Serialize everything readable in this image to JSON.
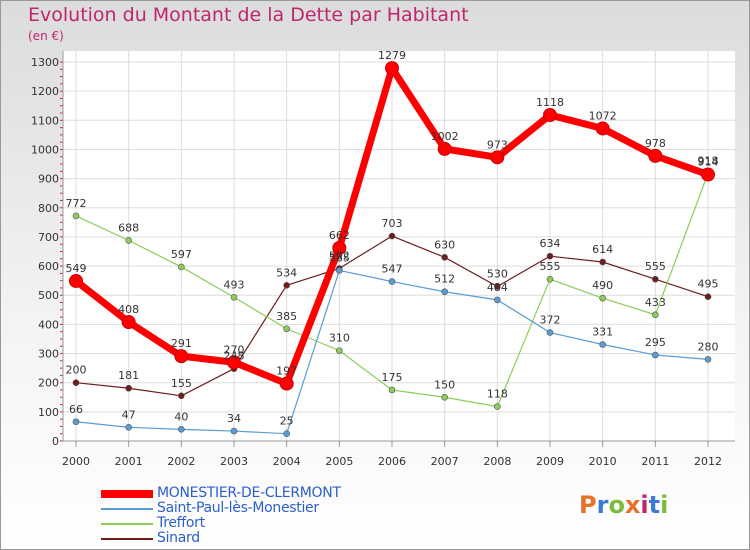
{
  "title": "Evolution du Montant de la Dette par Habitant",
  "unit": "(en €)",
  "logo": {
    "text": "Proxiti",
    "colors": [
      "#e8702a",
      "#3b7bd4",
      "#7dbb3a",
      "#e8702a",
      "#c0266f",
      "#3b7bd4",
      "#7dbb3a"
    ]
  },
  "chart_data": {
    "type": "line",
    "x": [
      "2000",
      "2001",
      "2002",
      "2003",
      "2004",
      "2005",
      "2006",
      "2007",
      "2008",
      "2009",
      "2010",
      "2011",
      "2012"
    ],
    "ylim": [
      0,
      1300
    ],
    "yticks": [
      0,
      100,
      200,
      300,
      400,
      500,
      600,
      700,
      800,
      900,
      1000,
      1100,
      1200,
      1300
    ],
    "grid": true,
    "legend_position": "bottom-left",
    "series": [
      {
        "name": "MONESTIER-DE-CLERMONT",
        "color": "#ff0000",
        "values": [
          549,
          408,
          291,
          270,
          197,
          662,
          1279,
          1002,
          973,
          1118,
          1072,
          978,
          914
        ]
      },
      {
        "name": "Saint-Paul-lès-Monestier",
        "color": "#5b9bd5",
        "values": [
          66,
          47,
          40,
          34,
          25,
          585,
          547,
          512,
          484,
          372,
          331,
          295,
          280
        ]
      },
      {
        "name": "Treffort",
        "color": "#8ccd5a",
        "values": [
          772,
          688,
          597,
          493,
          385,
          310,
          175,
          150,
          118,
          555,
          490,
          433,
          918
        ]
      },
      {
        "name": "Sinard",
        "color": "#6e1d1d",
        "values": [
          200,
          181,
          155,
          248,
          534,
          592,
          703,
          630,
          530,
          634,
          614,
          555,
          495
        ]
      }
    ]
  }
}
